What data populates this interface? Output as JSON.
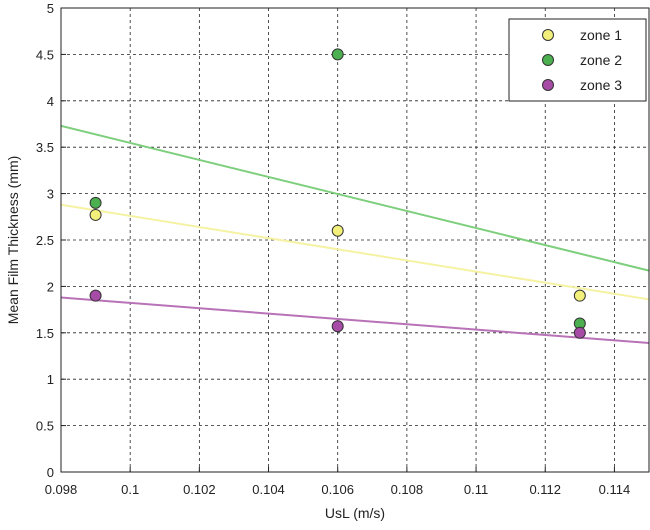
{
  "chart_data": {
    "type": "scatter",
    "title": "",
    "xlabel": "UsL (m/s)",
    "ylabel": "Mean Film Thickness (mm)",
    "xlim": [
      0.098,
      0.115
    ],
    "ylim": [
      0,
      5
    ],
    "xticks": [
      0.098,
      0.1,
      0.102,
      0.104,
      0.106,
      0.108,
      0.11,
      0.112,
      0.114
    ],
    "xtick_labels": [
      "0.098",
      "0.1",
      "0.102",
      "0.104",
      "0.106",
      "0.108",
      "0.11",
      "0.112",
      "0.114"
    ],
    "yticks": [
      0,
      0.5,
      1,
      1.5,
      2,
      2.5,
      3,
      3.5,
      4,
      4.5,
      5
    ],
    "ytick_labels": [
      "0",
      "0.5",
      "1",
      "1.5",
      "2",
      "2.5",
      "3",
      "3.5",
      "4",
      "4.5",
      "5"
    ],
    "grid": true,
    "legend_position": "top-right",
    "series": [
      {
        "name": "zone 1",
        "color": "#f2ef7a",
        "line_color": "#f5f2a3",
        "x": [
          0.099,
          0.106,
          0.113
        ],
        "y": [
          2.77,
          2.6,
          1.9
        ],
        "trend": {
          "x": [
            0.098,
            0.115
          ],
          "y": [
            2.88,
            1.86
          ]
        }
      },
      {
        "name": "zone 2",
        "color": "#4caf50",
        "line_color": "#7dcf7d",
        "x": [
          0.099,
          0.106,
          0.113
        ],
        "y": [
          2.9,
          4.5,
          1.6
        ],
        "trend": {
          "x": [
            0.098,
            0.115
          ],
          "y": [
            3.73,
            2.17
          ]
        }
      },
      {
        "name": "zone 3",
        "color": "#a64ca6",
        "line_color": "#b872b8",
        "x": [
          0.099,
          0.106,
          0.113
        ],
        "y": [
          1.9,
          1.57,
          1.5
        ],
        "trend": {
          "x": [
            0.098,
            0.115
          ],
          "y": [
            1.88,
            1.39
          ]
        }
      }
    ]
  }
}
